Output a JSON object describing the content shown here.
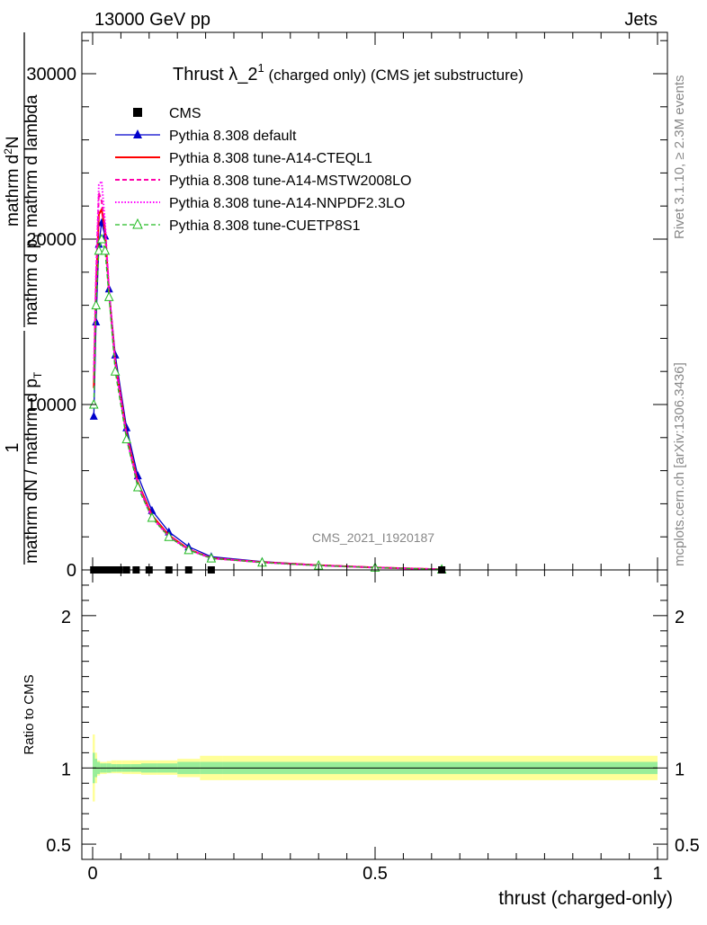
{
  "header": {
    "left": "13000 GeV pp",
    "right": "Jets"
  },
  "title": {
    "main": "Thrust λ_2",
    "sup": "1",
    "sub": " (charged only) (CMS jet substructure)"
  },
  "side_labels": {
    "rivet": "Rivet 3.1.10, ≥ 2.3M events",
    "mcplots": "mcplots.cern.ch [arXiv:1306.3436]"
  },
  "watermark": "CMS_2021_I1920187",
  "ylabel_main": {
    "numer1": "1",
    "denom1": "mathrm dN / mathrm d p",
    "numer2": "mathrm d",
    "numer2_sup": "2",
    "numer2_rest": "N",
    "denom2": "mathrm d p",
    "denom2_rest": " mathrm d lambda",
    "sub_T": "T"
  },
  "ylabel_ratio": "Ratio to CMS",
  "xlabel": "thrust (charged-only)",
  "colors": {
    "cms": "#000000",
    "default": "#0000cc",
    "cteql1": "#ff0000",
    "mstw": "#ff00aa",
    "nnpdf": "#ff00ff",
    "cuetp": "#22bb22",
    "band_inner": "#99ee99",
    "band_outer": "#ffff99"
  },
  "chart_data": [
    {
      "type": "line",
      "panel": "main",
      "xlim": [
        0,
        1
      ],
      "ylim": [
        0,
        32500
      ],
      "x_ticks": [
        0,
        0.5,
        1
      ],
      "y_ticks": [
        0,
        10000,
        20000,
        30000
      ],
      "y_tick_labels": [
        "0",
        "10000",
        "20000",
        "30000"
      ],
      "legend_position": "top-left",
      "series": [
        {
          "name": "CMS",
          "style": "square",
          "x": [
            0.002,
            0.006,
            0.011,
            0.016,
            0.022,
            0.029,
            0.037,
            0.047,
            0.06,
            0.077,
            0.1,
            0.135,
            0.17,
            0.21,
            0.618
          ],
          "y": [
            0,
            0,
            0,
            0,
            0,
            0,
            0,
            0,
            0,
            0,
            0,
            0,
            0,
            0,
            0
          ]
        },
        {
          "name": "Pythia 8.308 default",
          "style": "line-triangle",
          "x": [
            0.002,
            0.006,
            0.011,
            0.016,
            0.022,
            0.029,
            0.04,
            0.06,
            0.08,
            0.105,
            0.135,
            0.17,
            0.21,
            0.3,
            0.4,
            0.5,
            0.618
          ],
          "y": [
            9300,
            15000,
            19700,
            21000,
            20200,
            17000,
            13000,
            8600,
            5700,
            3600,
            2300,
            1400,
            800,
            500,
            300,
            160,
            30
          ]
        },
        {
          "name": "Pythia 8.308 tune-A14-CTEQL1",
          "style": "solid",
          "x": [
            0.002,
            0.006,
            0.011,
            0.016,
            0.022,
            0.029,
            0.04,
            0.06,
            0.08,
            0.105,
            0.135,
            0.17,
            0.21,
            0.3,
            0.4,
            0.5,
            0.618
          ],
          "y": [
            11000,
            17000,
            21500,
            21800,
            20500,
            16800,
            12600,
            8200,
            5300,
            3300,
            2100,
            1250,
            720,
            470,
            280,
            150,
            30
          ]
        },
        {
          "name": "Pythia 8.308 tune-A14-MSTW2008LO",
          "style": "dashed",
          "x": [
            0.002,
            0.006,
            0.011,
            0.016,
            0.022,
            0.029,
            0.04,
            0.06,
            0.08,
            0.105,
            0.135,
            0.17,
            0.21,
            0.3,
            0.4,
            0.5,
            0.618
          ],
          "y": [
            11500,
            17500,
            22800,
            22300,
            20700,
            16900,
            12500,
            8100,
            5200,
            3200,
            2050,
            1230,
            710,
            460,
            270,
            145,
            30
          ]
        },
        {
          "name": "Pythia 8.308 tune-A14-NNPDF2.3LO",
          "style": "dotted",
          "x": [
            0.002,
            0.006,
            0.011,
            0.016,
            0.022,
            0.029,
            0.04,
            0.06,
            0.08,
            0.105,
            0.135,
            0.17,
            0.21,
            0.3,
            0.4,
            0.5,
            0.618
          ],
          "y": [
            12000,
            18000,
            23300,
            23500,
            21000,
            17000,
            12500,
            8000,
            5100,
            3150,
            2000,
            1200,
            700,
            450,
            265,
            140,
            30
          ]
        },
        {
          "name": "Pythia 8.308 tune-CUETP8S1",
          "style": "dashed-open-triangle",
          "x": [
            0.002,
            0.006,
            0.011,
            0.016,
            0.022,
            0.029,
            0.04,
            0.06,
            0.08,
            0.105,
            0.135,
            0.17,
            0.21,
            0.3,
            0.4,
            0.5,
            0.618
          ],
          "y": [
            10000,
            16000,
            19300,
            20000,
            19300,
            16500,
            12000,
            7900,
            5000,
            3150,
            2000,
            1200,
            700,
            450,
            265,
            140,
            30
          ]
        }
      ]
    },
    {
      "type": "area",
      "panel": "ratio",
      "xlim": [
        0,
        1
      ],
      "ylim": [
        0.4,
        2.3
      ],
      "x_ticks": [
        0,
        0.5,
        1
      ],
      "x_tick_labels": [
        "0",
        "0.5",
        "1"
      ],
      "y_ticks": [
        0.5,
        1,
        2
      ],
      "y_tick_labels": [
        "0.5",
        "1",
        "2"
      ],
      "reference_line": 1,
      "bins": [
        0,
        0.004,
        0.008,
        0.013,
        0.019,
        0.025,
        0.033,
        0.042,
        0.052,
        0.068,
        0.086,
        0.114,
        0.15,
        0.19,
        0.23,
        1.0
      ],
      "band_inner": {
        "lo": [
          0.9,
          0.94,
          0.96,
          0.97,
          0.97,
          0.97,
          0.975,
          0.975,
          0.975,
          0.975,
          0.97,
          0.97,
          0.96,
          0.96,
          0.96
        ],
        "hi": [
          1.1,
          1.06,
          1.04,
          1.03,
          1.03,
          1.03,
          1.025,
          1.025,
          1.025,
          1.025,
          1.03,
          1.03,
          1.04,
          1.04,
          1.04
        ]
      },
      "band_outer": {
        "lo": [
          0.78,
          0.9,
          0.95,
          0.96,
          0.96,
          0.965,
          0.965,
          0.965,
          0.96,
          0.96,
          0.955,
          0.955,
          0.94,
          0.92,
          0.92
        ],
        "hi": [
          1.22,
          1.1,
          1.05,
          1.04,
          1.04,
          1.045,
          1.05,
          1.05,
          1.05,
          1.05,
          1.05,
          1.05,
          1.06,
          1.08,
          1.08
        ]
      }
    }
  ]
}
